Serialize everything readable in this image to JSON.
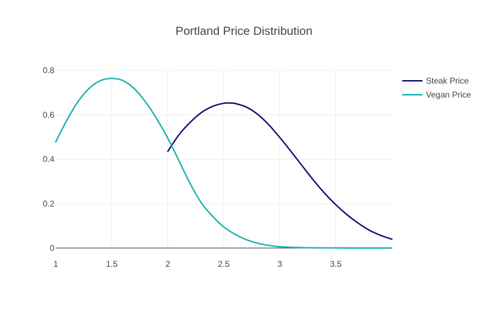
{
  "chart_data": {
    "type": "line",
    "title": "Portland Price Distribution",
    "xlabel": "",
    "ylabel": "",
    "xlim": [
      1,
      4
    ],
    "ylim": [
      0,
      0.8
    ],
    "x_ticks": [
      "1",
      "1.5",
      "2",
      "2.5",
      "3",
      "3.5"
    ],
    "y_ticks": [
      "0",
      "0.2",
      "0.4",
      "0.6",
      "0.8"
    ],
    "grid": true,
    "legend_position": "top-right",
    "series": [
      {
        "name": "Steak Price",
        "color": "#0b0b6b",
        "x": [
          2.0,
          2.1,
          2.2,
          2.3,
          2.4,
          2.5,
          2.55,
          2.6,
          2.7,
          2.8,
          2.9,
          3.0,
          3.1,
          3.2,
          3.3,
          3.4,
          3.5,
          3.6,
          3.7,
          3.8,
          3.9,
          4.0
        ],
        "y": [
          0.435,
          0.51,
          0.566,
          0.61,
          0.638,
          0.652,
          0.653,
          0.651,
          0.635,
          0.603,
          0.556,
          0.498,
          0.435,
          0.37,
          0.306,
          0.247,
          0.195,
          0.15,
          0.112,
          0.08,
          0.057,
          0.04
        ]
      },
      {
        "name": "Vegan Price",
        "color": "#17b0b0",
        "x": [
          1.0,
          1.1,
          1.2,
          1.3,
          1.4,
          1.5,
          1.6,
          1.7,
          1.8,
          1.9,
          2.0,
          2.1,
          2.2,
          2.3,
          2.4,
          2.5,
          2.6,
          2.7,
          2.8,
          2.9,
          3.0,
          3.2,
          3.4,
          3.6,
          3.8,
          4.0
        ],
        "y": [
          0.478,
          0.577,
          0.66,
          0.72,
          0.754,
          0.764,
          0.754,
          0.718,
          0.659,
          0.583,
          0.495,
          0.393,
          0.29,
          0.203,
          0.143,
          0.095,
          0.062,
          0.038,
          0.022,
          0.012,
          0.006,
          0.002,
          0.0007,
          0.0002,
          0.0,
          0.0
        ]
      }
    ]
  }
}
